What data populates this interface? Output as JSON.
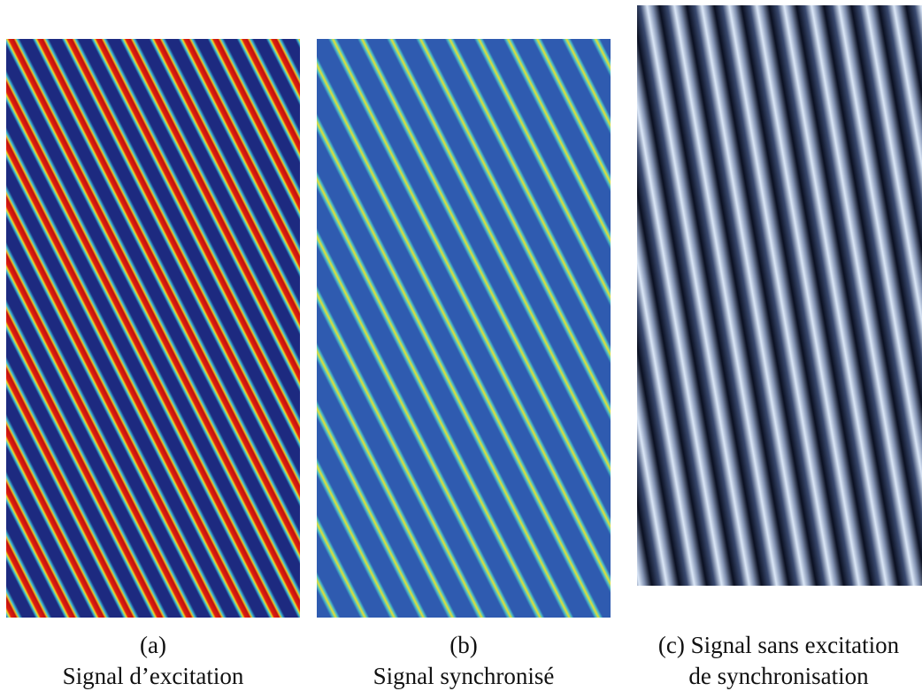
{
  "figure": {
    "panels": [
      {
        "lines": [
          "(a)",
          "Signal d’excitation"
        ]
      },
      {
        "lines": [
          "(b)",
          "Signal synchronisé"
        ]
      },
      {
        "lines": [
          "(c) Signal sans excitation",
          "de synchronisation"
        ]
      }
    ]
  }
}
